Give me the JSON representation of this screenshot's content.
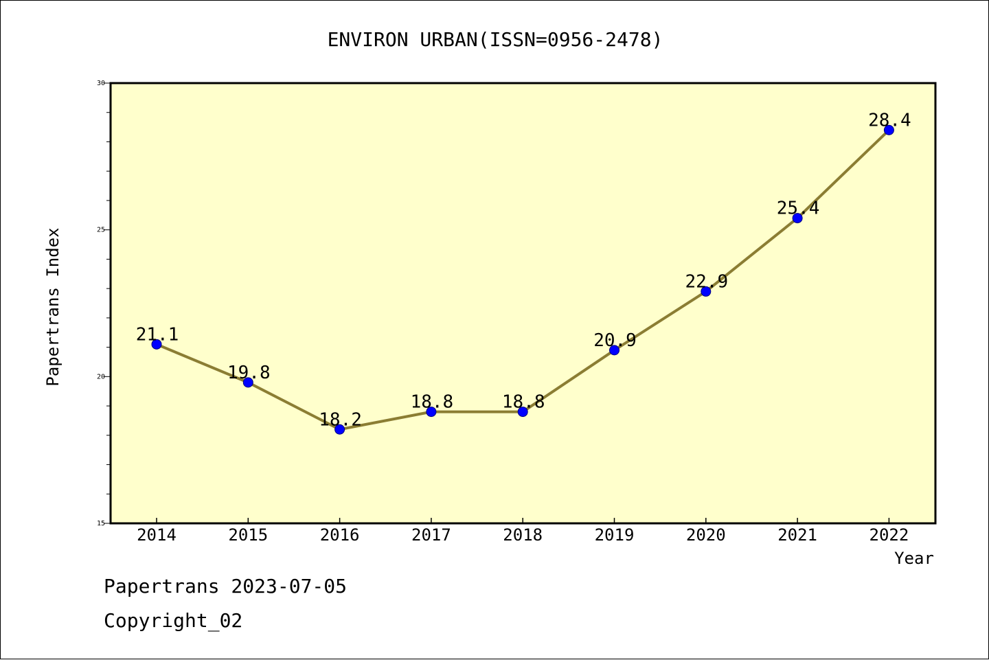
{
  "footer": {
    "date_text": "Papertrans 2023-07-05",
    "copyright_text": "Copyright_02"
  },
  "colors": {
    "plot_background": "#ffffcc",
    "line": "#8b7d33",
    "marker": "#0000ff",
    "frame": "#000000"
  },
  "chart_data": {
    "type": "line",
    "title": "ENVIRON URBAN(ISSN=0956-2478)",
    "xlabel": "Year",
    "ylabel": "Papertrans Index",
    "categories": [
      "2014",
      "2015",
      "2016",
      "2017",
      "2018",
      "2019",
      "2020",
      "2021",
      "2022"
    ],
    "series": [
      {
        "values": [
          21.1,
          19.8,
          18.2,
          18.8,
          18.8,
          20.9,
          22.9,
          25.4,
          28.4
        ],
        "labels": [
          "21.1",
          "19.8",
          "18.2",
          "18.8",
          "18.8",
          "20.9",
          "22.9",
          "25.4",
          "28.4"
        ]
      }
    ],
    "ylim": [
      15,
      30
    ],
    "yticks": [
      "15",
      "20",
      "25",
      "30"
    ],
    "y_minor_step": 1,
    "grid": false,
    "legend": "none",
    "marker": "circle"
  }
}
